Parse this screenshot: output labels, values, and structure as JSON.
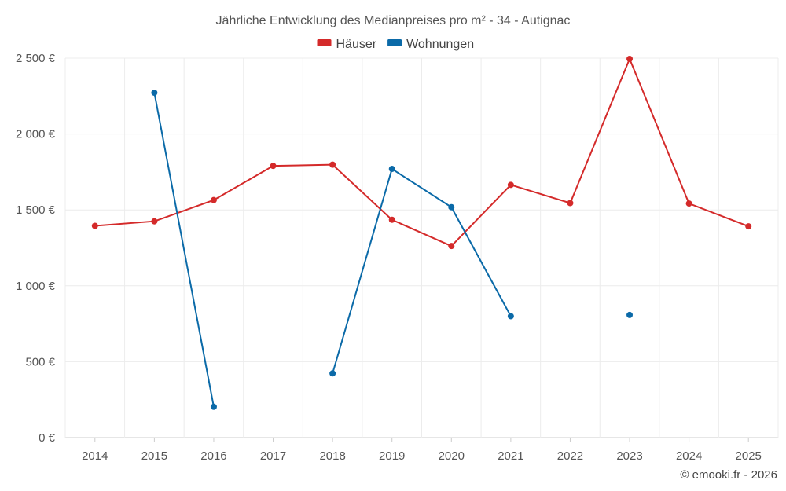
{
  "chart_data": {
    "type": "line",
    "title": "Jährliche Entwicklung des Medianpreises pro m² - 34 - Autignac",
    "categories": [
      "2014",
      "2015",
      "2016",
      "2017",
      "2018",
      "2019",
      "2020",
      "2021",
      "2022",
      "2023",
      "2024",
      "2025"
    ],
    "y_ticks": [
      "0 €",
      "500 €",
      "1 000 €",
      "1 500 €",
      "2 000 €",
      "2 500 €"
    ],
    "ylim": [
      0,
      2500
    ],
    "grid": true,
    "legend_position": "top-center",
    "series": [
      {
        "name": "Häuser",
        "color": "#d42a2a",
        "values": [
          1395,
          1425,
          1565,
          1790,
          1798,
          1435,
          1262,
          1665,
          1545,
          2495,
          1542,
          1392
        ]
      },
      {
        "name": "Wohnungen",
        "color": "#0b6aa8",
        "values": [
          null,
          2272,
          203,
          null,
          423,
          1770,
          1518,
          800,
          null,
          808,
          null,
          null
        ]
      }
    ],
    "credit": "© emooki.fr - 2026"
  }
}
